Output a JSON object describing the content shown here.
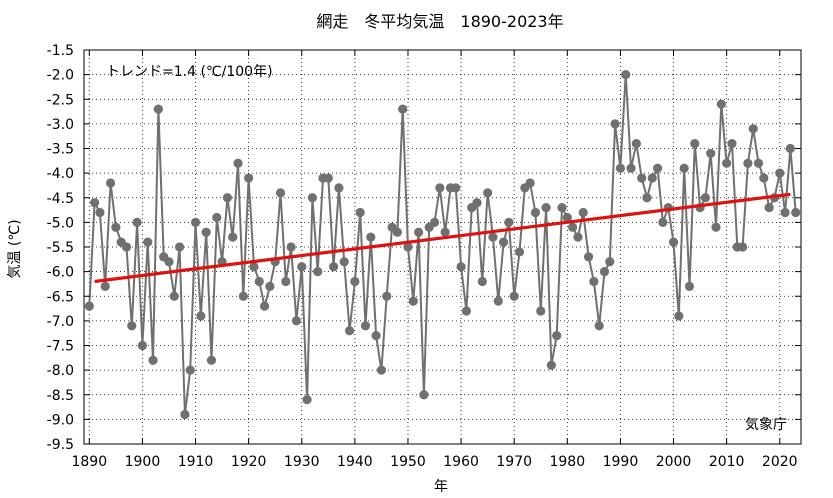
{
  "chart_data": {
    "type": "line",
    "title": "網走　冬平均気温　1890-2023年",
    "xlabel": "年",
    "ylabel": "気温 (℃)",
    "trend_label": "トレンド=1.4 (℃/100年)",
    "source_label": "気象庁",
    "xlim": [
      1889,
      2024
    ],
    "ylim": [
      -9.5,
      -1.5
    ],
    "x_ticks": [
      1890,
      1900,
      1910,
      1920,
      1930,
      1940,
      1950,
      1960,
      1970,
      1980,
      1990,
      2000,
      2010,
      2020
    ],
    "x_tick_labels": [
      "1890",
      "1900",
      "1910",
      "1920",
      "1930",
      "1940",
      "1950",
      "1960",
      "1970",
      "1980",
      "1990",
      "2000",
      "2010",
      "2020"
    ],
    "y_ticks": [
      -1.5,
      -2.0,
      -2.5,
      -3.0,
      -3.5,
      -4.0,
      -4.5,
      -5.0,
      -5.5,
      -6.0,
      -6.5,
      -7.0,
      -7.5,
      -8.0,
      -8.5,
      -9.0,
      -9.5
    ],
    "y_tick_labels": [
      "-1.5",
      "-2.0",
      "-2.5",
      "-3.0",
      "-3.5",
      "-4.0",
      "-4.5",
      "-5.0",
      "-5.5",
      "-6.0",
      "-6.5",
      "-7.0",
      "-7.5",
      "-8.0",
      "-8.5",
      "-9.0",
      "-9.5"
    ],
    "grid": true,
    "series": [
      {
        "color": "#707070",
        "x": [
          1890,
          1891,
          1892,
          1893,
          1894,
          1895,
          1896,
          1897,
          1898,
          1899,
          1900,
          1901,
          1902,
          1903,
          1904,
          1905,
          1906,
          1907,
          1908,
          1909,
          1910,
          1911,
          1912,
          1913,
          1914,
          1915,
          1916,
          1917,
          1918,
          1919,
          1920,
          1921,
          1922,
          1923,
          1924,
          1925,
          1926,
          1927,
          1928,
          1929,
          1930,
          1931,
          1932,
          1933,
          1934,
          1935,
          1936,
          1937,
          1938,
          1939,
          1940,
          1941,
          1942,
          1943,
          1944,
          1945,
          1946,
          1947,
          1948,
          1949,
          1950,
          1951,
          1952,
          1953,
          1954,
          1955,
          1956,
          1957,
          1958,
          1959,
          1960,
          1961,
          1962,
          1963,
          1964,
          1965,
          1966,
          1967,
          1968,
          1969,
          1970,
          1971,
          1972,
          1973,
          1974,
          1975,
          1976,
          1977,
          1978,
          1979,
          1980,
          1981,
          1982,
          1983,
          1984,
          1985,
          1986,
          1987,
          1988,
          1989,
          1990,
          1991,
          1992,
          1993,
          1994,
          1995,
          1996,
          1997,
          1998,
          1999,
          2000,
          2001,
          2002,
          2003,
          2004,
          2005,
          2006,
          2007,
          2008,
          2009,
          2010,
          2011,
          2012,
          2013,
          2014,
          2015,
          2016,
          2017,
          2018,
          2019,
          2020,
          2021,
          2022,
          2023
        ],
        "y": [
          -6.7,
          -4.6,
          -4.8,
          -6.3,
          -4.2,
          -5.1,
          -5.4,
          -5.5,
          -7.1,
          -5.0,
          -7.5,
          -5.4,
          -7.8,
          -2.7,
          -5.7,
          -5.8,
          -6.5,
          -5.5,
          -8.9,
          -8.0,
          -5.0,
          -6.9,
          -5.2,
          -7.8,
          -4.9,
          -5.8,
          -4.5,
          -5.3,
          -3.8,
          -6.5,
          -4.1,
          -5.9,
          -6.2,
          -6.7,
          -6.3,
          -5.8,
          -4.4,
          -6.2,
          -5.5,
          -7.0,
          -5.9,
          -8.6,
          -4.5,
          -6.0,
          -4.1,
          -4.1,
          -5.9,
          -4.3,
          -5.8,
          -7.2,
          -6.2,
          -4.8,
          -7.1,
          -5.3,
          -7.3,
          -8.0,
          -6.5,
          -5.1,
          -5.2,
          -2.7,
          -5.5,
          -6.6,
          -5.2,
          -8.5,
          -5.1,
          -5.0,
          -4.3,
          -5.2,
          -4.3,
          -4.3,
          -5.9,
          -6.8,
          -4.7,
          -4.6,
          -6.2,
          -4.4,
          -5.3,
          -6.6,
          -5.4,
          -5.0,
          -6.5,
          -5.6,
          -4.3,
          -4.2,
          -4.8,
          -6.8,
          -4.7,
          -7.9,
          -7.3,
          -4.7,
          -4.9,
          -5.1,
          -5.3,
          -4.8,
          -5.7,
          -6.2,
          -7.1,
          -6.0,
          -5.8,
          -3.0,
          -3.9,
          -2.0,
          -3.9,
          -3.4,
          -4.1,
          -4.5,
          -4.1,
          -3.9,
          -5.0,
          -4.7,
          -5.4,
          -6.9,
          -3.9,
          -6.3,
          -3.4,
          -4.7,
          -4.5,
          -3.6,
          -5.1,
          -2.6,
          -3.8,
          -3.4,
          -5.5,
          -5.5,
          -3.8,
          -3.1,
          -3.8,
          -4.1,
          -4.7,
          -4.5,
          -4.0,
          -4.8,
          -3.5,
          -4.8
        ]
      }
    ],
    "trend": {
      "color": "#e0120f",
      "x": [
        1891,
        2022
      ],
      "y": [
        -6.2,
        -4.43
      ]
    }
  }
}
